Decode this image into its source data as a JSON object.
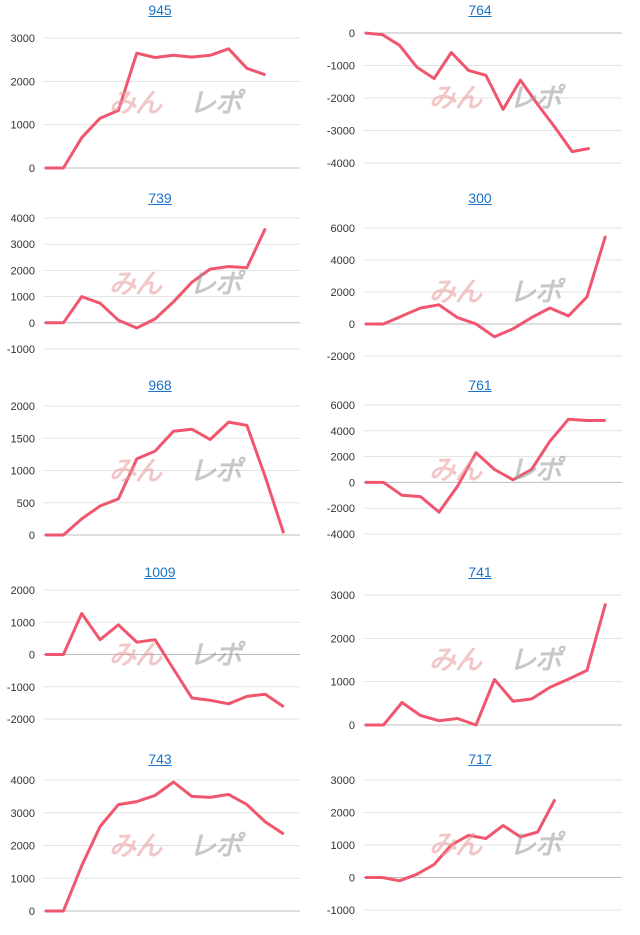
{
  "watermark": {
    "left": "みん",
    "right": "レポ"
  },
  "colors": {
    "line": "#f0566e",
    "grid": "#e3e3e3",
    "zero": "#bdbdbd",
    "title": "#1a73c7"
  },
  "chart_data": [
    {
      "type": "line",
      "title": "945",
      "yticks": [
        0,
        1000,
        2000,
        3000
      ],
      "ylim": [
        0,
        3000
      ],
      "values": [
        0,
        0,
        700,
        1150,
        1330,
        2650,
        2550,
        2600,
        2560,
        2600,
        2750,
        2300,
        2150
      ]
    },
    {
      "type": "line",
      "title": "764",
      "yticks": [
        0,
        -1000,
        -2000,
        -3000,
        -4000
      ],
      "ylim": [
        -4000,
        0
      ],
      "values": [
        0,
        -50,
        -380,
        -1050,
        -1400,
        -600,
        -1150,
        -1300,
        -2350,
        -1450,
        -2200,
        -2900,
        -3650,
        -3550
      ]
    },
    {
      "type": "line",
      "title": "739",
      "yticks": [
        -1000,
        0,
        1000,
        2000,
        3000,
        4000
      ],
      "ylim": [
        -1000,
        4000
      ],
      "values": [
        0,
        0,
        1000,
        750,
        100,
        -200,
        150,
        800,
        1550,
        2050,
        2150,
        2100,
        3600
      ]
    },
    {
      "type": "line",
      "title": "300",
      "yticks": [
        -2000,
        0,
        2000,
        4000,
        6000
      ],
      "ylim": [
        -2000,
        6000
      ],
      "values": [
        0,
        0,
        500,
        1000,
        1200,
        400,
        0,
        -800,
        -300,
        400,
        1000,
        500,
        1700,
        5500
      ]
    },
    {
      "type": "line",
      "title": "968",
      "yticks": [
        0,
        500,
        1000,
        1500,
        2000
      ],
      "ylim": [
        0,
        2000
      ],
      "values": [
        0,
        0,
        250,
        450,
        560,
        1180,
        1300,
        1610,
        1640,
        1480,
        1750,
        1700,
        900,
        30
      ]
    },
    {
      "type": "line",
      "title": "761",
      "yticks": [
        -4000,
        -2000,
        0,
        2000,
        4000,
        6000
      ],
      "ylim": [
        -4000,
        6000
      ],
      "values": [
        0,
        0,
        -1000,
        -1100,
        -2300,
        -300,
        2300,
        1000,
        200,
        1000,
        3200,
        4900,
        4800,
        4800
      ]
    },
    {
      "type": "line",
      "title": "1009",
      "yticks": [
        -2000,
        -1000,
        0,
        1000,
        2000
      ],
      "ylim": [
        -2000,
        2000
      ],
      "values": [
        0,
        0,
        1270,
        460,
        920,
        380,
        460,
        -450,
        -1350,
        -1420,
        -1530,
        -1300,
        -1230,
        -1620
      ]
    },
    {
      "type": "line",
      "title": "741",
      "yticks": [
        0,
        1000,
        2000,
        3000
      ],
      "ylim": [
        0,
        3000
      ],
      "values": [
        0,
        0,
        520,
        220,
        100,
        150,
        0,
        1050,
        550,
        600,
        870,
        1060,
        1260,
        2800
      ]
    },
    {
      "type": "line",
      "title": "743",
      "yticks": [
        0,
        1000,
        2000,
        3000,
        4000
      ],
      "ylim": [
        0,
        4000
      ],
      "values": [
        0,
        0,
        1380,
        2580,
        3250,
        3340,
        3530,
        3940,
        3500,
        3470,
        3560,
        3250,
        2720,
        2350
      ]
    },
    {
      "type": "line",
      "title": "717",
      "yticks": [
        -1000,
        0,
        1000,
        2000,
        3000
      ],
      "ylim": [
        -1000,
        3000
      ],
      "values": [
        0,
        0,
        -100,
        100,
        400,
        1000,
        1300,
        1200,
        1600,
        1250,
        1400,
        2400
      ]
    }
  ]
}
